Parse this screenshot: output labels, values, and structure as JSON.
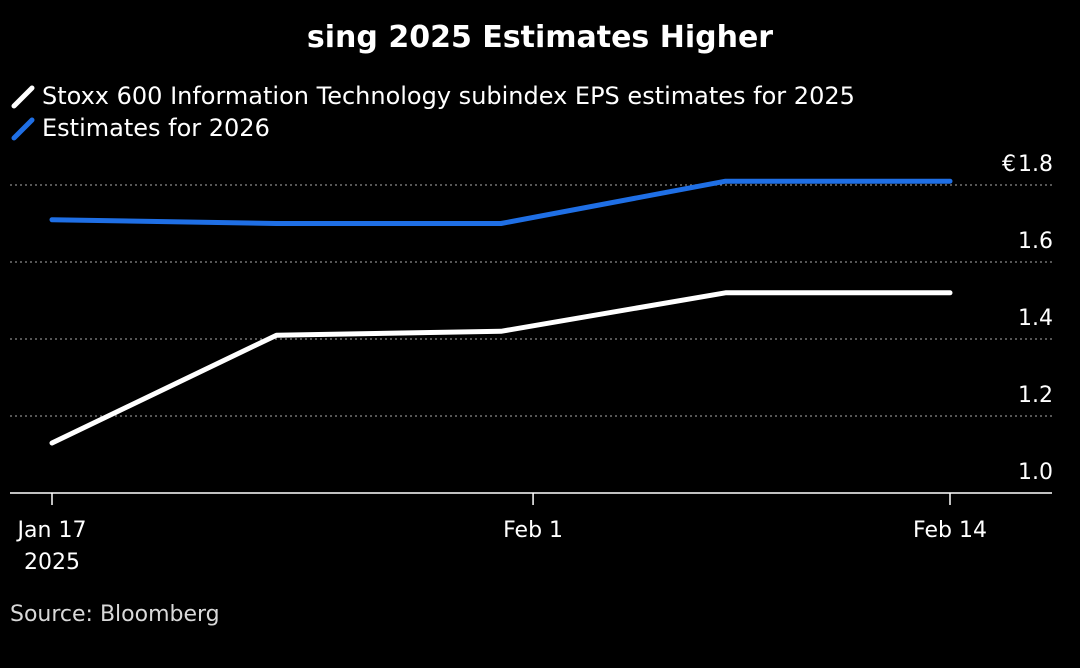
{
  "chart_data": {
    "type": "line",
    "title": "sing 2025 Estimates Higher",
    "y_unit_prefix": "€",
    "ylim": [
      1.0,
      1.8
    ],
    "y_ticks": [
      {
        "value": 1.8,
        "label": "1.8"
      },
      {
        "value": 1.6,
        "label": "1.6"
      },
      {
        "value": 1.4,
        "label": "1.4"
      },
      {
        "value": 1.2,
        "label": "1.2"
      },
      {
        "value": 1.0,
        "label": "1.0"
      }
    ],
    "x_ticks": [
      {
        "date": "2025-01-17",
        "label": "Jan 17",
        "sublabel": "2025"
      },
      {
        "date": "2025-02-01",
        "label": "Feb 1",
        "sublabel": ""
      },
      {
        "date": "2025-02-14",
        "label": "Feb 14",
        "sublabel": ""
      }
    ],
    "grid": true,
    "series": [
      {
        "name": "Stoxx 600 Information Technology subindex EPS estimates for 2025",
        "color": "#ffffff",
        "points": [
          {
            "x": "2025-01-17",
            "y": 1.13
          },
          {
            "x": "2025-01-24",
            "y": 1.41
          },
          {
            "x": "2025-01-31",
            "y": 1.42
          },
          {
            "x": "2025-02-07",
            "y": 1.52
          },
          {
            "x": "2025-02-14",
            "y": 1.52
          }
        ]
      },
      {
        "name": "Estimates for 2026",
        "color": "#1f6fe5",
        "points": [
          {
            "x": "2025-01-17",
            "y": 1.71
          },
          {
            "x": "2025-01-24",
            "y": 1.7
          },
          {
            "x": "2025-01-31",
            "y": 1.7
          },
          {
            "x": "2025-02-07",
            "y": 1.81
          },
          {
            "x": "2025-02-14",
            "y": 1.81
          }
        ]
      }
    ],
    "source": "Source: Bloomberg"
  }
}
